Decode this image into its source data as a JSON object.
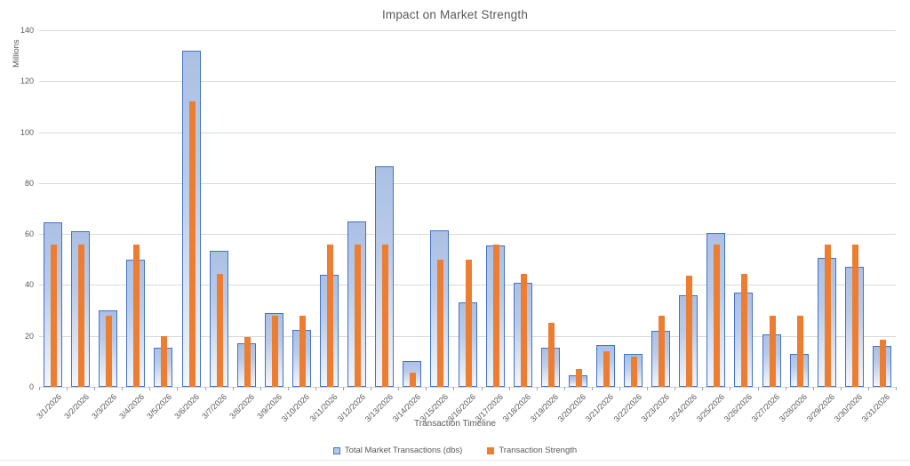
{
  "title": "Impact on Market Strength",
  "y_axis": {
    "label": "Millions",
    "ticks": [
      0,
      20,
      40,
      60,
      80,
      100,
      120,
      140
    ]
  },
  "x_axis": {
    "title": "Transaction Timeline"
  },
  "legend": {
    "items": [
      {
        "label": "Total Market Transactions (dbs)",
        "color": "#4472C4"
      },
      {
        "label": "Transaction Strength",
        "color": "#ED7D31"
      }
    ],
    "position": "bottom"
  },
  "colors": {
    "blue_border": "#4472C4",
    "blue_fill_top": "#ABC0E4",
    "blue_fill_bottom": "#F2F6FB",
    "orange": "#ED7D31",
    "gridline": "#D9D9D9",
    "text": "#595959"
  },
  "chart_data": {
    "type": "bar",
    "title": "Impact on Market Strength",
    "xlabel": "Transaction Timeline",
    "ylabel": "Millions",
    "ylim": [
      0,
      140
    ],
    "ytick_step": 20,
    "grid": true,
    "legend_position": "bottom",
    "categories": [
      "3/1/2026",
      "3/2/2026",
      "3/3/2026",
      "3/4/2026",
      "3/5/2026",
      "3/6/2026",
      "3/7/2026",
      "3/8/2026",
      "3/9/2026",
      "3/10/2026",
      "3/11/2026",
      "3/12/2026",
      "3/13/2026",
      "3/14/2026",
      "3/15/2026",
      "3/16/2026",
      "3/17/2026",
      "3/18/2026",
      "3/19/2026",
      "3/20/2026",
      "3/21/2026",
      "3/22/2026",
      "3/23/2026",
      "3/24/2026",
      "3/25/2026",
      "3/26/2026",
      "3/27/2026",
      "3/28/2026",
      "3/29/2026",
      "3/30/2026",
      "3/31/2026"
    ],
    "series": [
      {
        "name": "Total Market Transactions (dbs)",
        "color": "#4472C4",
        "style": "wide-gradient-bar",
        "values": [
          64.5,
          61,
          30,
          50,
          15.5,
          132,
          53.5,
          17,
          29,
          22.5,
          44,
          65,
          86.5,
          10,
          61.5,
          33,
          55.5,
          41,
          15.5,
          4.5,
          16.5,
          13,
          22,
          36,
          60.5,
          37,
          20.5,
          13,
          50.5,
          47,
          16
        ]
      },
      {
        "name": "Transaction Strength",
        "color": "#ED7D31",
        "style": "narrow-solid-bar",
        "values": [
          56,
          56,
          28,
          56,
          20,
          112,
          44.5,
          19.5,
          28,
          28,
          56,
          56,
          56,
          5.5,
          50,
          50,
          56,
          44.5,
          25,
          7,
          14,
          12,
          28,
          43.5,
          56,
          44.5,
          28,
          28,
          56,
          56,
          18.5
        ]
      }
    ]
  }
}
